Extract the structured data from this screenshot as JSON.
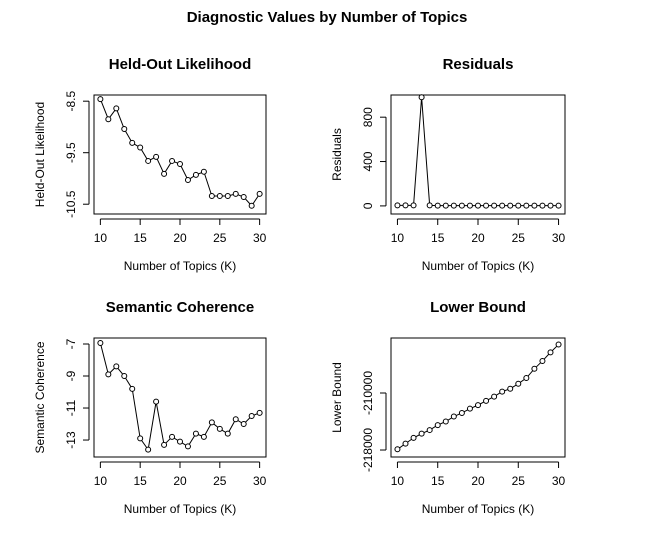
{
  "title": "Diagnostic Values by Number of Topics",
  "chart_data": [
    {
      "type": "line",
      "title": "Held-Out Likelihood",
      "xlabel": "Number of Topics (K)",
      "ylabel": "Held-Out Likelihood",
      "color": "#000000",
      "x": [
        10,
        11,
        12,
        13,
        14,
        15,
        16,
        17,
        18,
        19,
        20,
        21,
        22,
        23,
        24,
        25,
        26,
        27,
        28,
        29,
        30
      ],
      "values": [
        -8.46,
        -8.85,
        -8.64,
        -9.04,
        -9.31,
        -9.4,
        -9.66,
        -9.58,
        -9.91,
        -9.66,
        -9.72,
        -10.03,
        -9.93,
        -9.87,
        -10.34,
        -10.34,
        -10.34,
        -10.3,
        -10.36,
        -10.53,
        -10.3
      ],
      "xlim": [
        9.2,
        30.8
      ],
      "ylim": [
        -10.69,
        -8.38
      ],
      "xticks": [
        10,
        15,
        20,
        25,
        30
      ],
      "yticks": [
        -8.5,
        -9.5,
        -10.5
      ]
    },
    {
      "type": "line",
      "title": "Residuals",
      "xlabel": "Number of Topics (K)",
      "ylabel": "Residuals",
      "color": "#000000",
      "x": [
        10,
        11,
        12,
        13,
        14,
        15,
        16,
        17,
        18,
        19,
        20,
        21,
        22,
        23,
        24,
        25,
        26,
        27,
        28,
        29,
        30
      ],
      "values": [
        5,
        5,
        5,
        980,
        5,
        3,
        3,
        3,
        3,
        3,
        3,
        3,
        3,
        3,
        3,
        3,
        3,
        3,
        3,
        3,
        3
      ],
      "xlim": [
        9.2,
        30.8
      ],
      "ylim": [
        -73,
        1000
      ],
      "xticks": [
        10,
        15,
        20,
        25,
        30
      ],
      "yticks": [
        0,
        400,
        800
      ]
    },
    {
      "type": "line",
      "title": "Semantic Coherence",
      "xlabel": "Number of Topics (K)",
      "ylabel": "Semantic Coherence",
      "color": "#000000",
      "x": [
        10,
        11,
        12,
        13,
        14,
        15,
        16,
        17,
        18,
        19,
        20,
        21,
        22,
        23,
        24,
        25,
        26,
        27,
        28,
        29,
        30
      ],
      "values": [
        -6.94,
        -8.9,
        -8.4,
        -9.0,
        -9.8,
        -12.9,
        -13.6,
        -10.6,
        -13.3,
        -12.8,
        -13.1,
        -13.4,
        -12.6,
        -12.8,
        -11.9,
        -12.3,
        -12.6,
        -11.7,
        -12.0,
        -11.5,
        -11.3
      ],
      "xlim": [
        9.2,
        30.8
      ],
      "ylim": [
        -14.06,
        -6.625
      ],
      "xticks": [
        10,
        15,
        20,
        25,
        30
      ],
      "yticks": [
        -7,
        -9,
        -11,
        -13
      ]
    },
    {
      "type": "line",
      "title": "Lower Bound",
      "xlabel": "Number of Topics (K)",
      "ylabel": "Lower Bound",
      "color": "#000000",
      "x": [
        10,
        11,
        12,
        13,
        14,
        15,
        16,
        17,
        18,
        19,
        20,
        21,
        22,
        23,
        24,
        25,
        26,
        27,
        28,
        29,
        30
      ],
      "values": [
        -217900,
        -217100,
        -216300,
        -215700,
        -215200,
        -214500,
        -214000,
        -213300,
        -212800,
        -212200,
        -211700,
        -211100,
        -210500,
        -209800,
        -209400,
        -208700,
        -207900,
        -206600,
        -205500,
        -204300,
        -203200
      ],
      "xlim": [
        9.2,
        30.8
      ],
      "ylim": [
        -218980,
        -202280
      ],
      "xticks": [
        10,
        15,
        20,
        25,
        30
      ],
      "yticks": [
        -210000,
        -218000
      ]
    }
  ]
}
